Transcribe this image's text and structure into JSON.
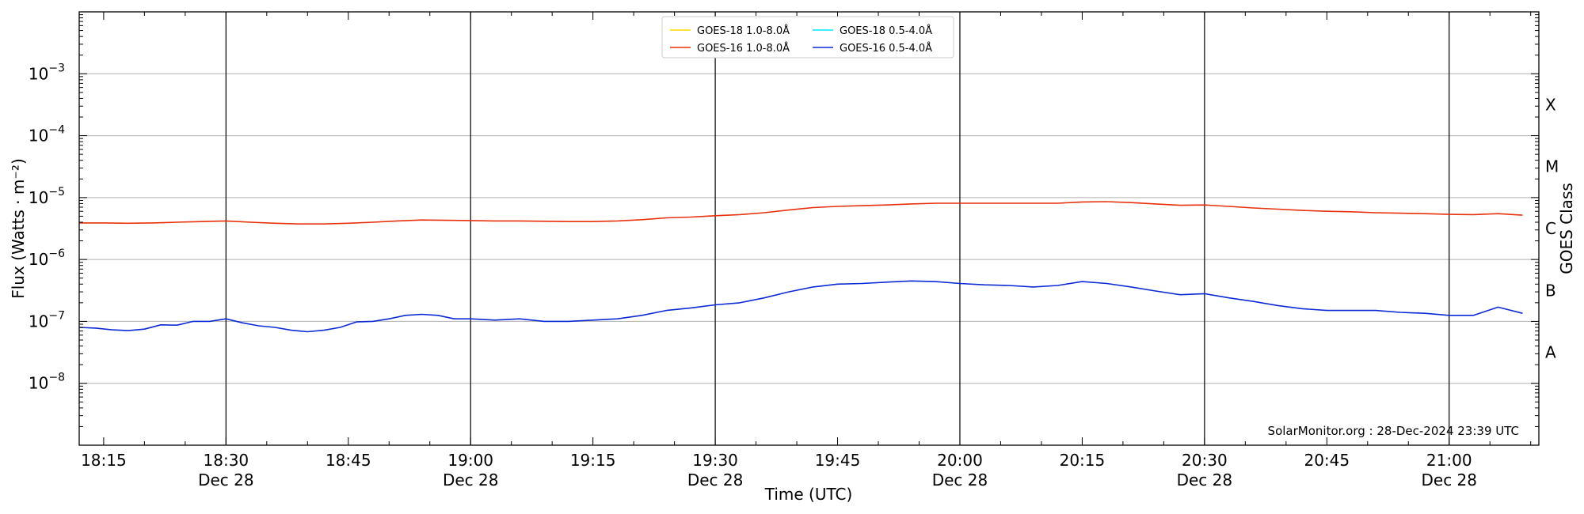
{
  "chart_data": {
    "type": "line",
    "title": "",
    "xlabel": "Time (UTC)",
    "ylabel": "Flux (Watts · m⁻²)",
    "y2label": "GOES Class",
    "y_scale": "log",
    "ylim": [
      1e-09,
      0.01
    ],
    "xlim": [
      "18:12",
      "21:11"
    ],
    "grid": "horizontal at decades",
    "vertical_markers": [
      "18:30",
      "19:00",
      "19:30",
      "20:00",
      "20:30",
      "21:00"
    ],
    "x_ticks": [
      {
        "t": "18:15",
        "line1": "18:15",
        "line2": ""
      },
      {
        "t": "18:30",
        "line1": "18:30",
        "line2": "Dec 28"
      },
      {
        "t": "18:45",
        "line1": "18:45",
        "line2": ""
      },
      {
        "t": "19:00",
        "line1": "19:00",
        "line2": "Dec 28"
      },
      {
        "t": "19:15",
        "line1": "19:15",
        "line2": ""
      },
      {
        "t": "19:30",
        "line1": "19:30",
        "line2": "Dec 28"
      },
      {
        "t": "19:45",
        "line1": "19:45",
        "line2": ""
      },
      {
        "t": "20:00",
        "line1": "20:00",
        "line2": "Dec 28"
      },
      {
        "t": "20:15",
        "line1": "20:15",
        "line2": ""
      },
      {
        "t": "20:30",
        "line1": "20:30",
        "line2": "Dec 28"
      },
      {
        "t": "20:45",
        "line1": "20:45",
        "line2": ""
      },
      {
        "t": "21:00",
        "line1": "21:00",
        "line2": "Dec 28"
      }
    ],
    "y_ticks": [
      {
        "value": 1e-08,
        "base": "10",
        "exp": "−8"
      },
      {
        "value": 1e-07,
        "base": "10",
        "exp": "−7"
      },
      {
        "value": 1e-06,
        "base": "10",
        "exp": "−6"
      },
      {
        "value": 1e-05,
        "base": "10",
        "exp": "−5"
      },
      {
        "value": 0.0001,
        "base": "10",
        "exp": "−4"
      },
      {
        "value": 0.001,
        "base": "10",
        "exp": "−3"
      }
    ],
    "goes_classes": [
      {
        "label": "A",
        "value": 3.16e-08
      },
      {
        "label": "B",
        "value": 3.16e-07
      },
      {
        "label": "C",
        "value": 3.16e-06
      },
      {
        "label": "M",
        "value": 3.16e-05
      },
      {
        "label": "X",
        "value": 0.000316
      }
    ],
    "legend": {
      "position": "top-center",
      "entries": [
        {
          "name": "GOES-18 1.0-8.0Å",
          "color": "#ffd700"
        },
        {
          "name": "GOES-18 0.5-4.0Å",
          "color": "#00e5ff"
        },
        {
          "name": "GOES-16 1.0-8.0Å",
          "color": "#e8300a"
        },
        {
          "name": "GOES-16 0.5-4.0Å",
          "color": "#0a2ad6"
        }
      ]
    },
    "annotation": "SolarMonitor.org : 28-Dec-2024 23:39 UTC",
    "series": [
      {
        "name": "GOES-16 1.0-8.0Å",
        "color": "#e8300a",
        "x": [
          "18:12",
          "18:15",
          "18:18",
          "18:21",
          "18:24",
          "18:27",
          "18:30",
          "18:33",
          "18:36",
          "18:39",
          "18:42",
          "18:45",
          "18:48",
          "18:51",
          "18:54",
          "18:57",
          "19:00",
          "19:03",
          "19:06",
          "19:09",
          "19:12",
          "19:15",
          "19:18",
          "19:21",
          "19:24",
          "19:27",
          "19:30",
          "19:33",
          "19:36",
          "19:39",
          "19:42",
          "19:45",
          "19:48",
          "19:51",
          "19:54",
          "19:57",
          "20:00",
          "20:03",
          "20:06",
          "20:09",
          "20:12",
          "20:15",
          "20:18",
          "20:21",
          "20:24",
          "20:27",
          "20:30",
          "20:33",
          "20:36",
          "20:39",
          "20:42",
          "20:45",
          "20:48",
          "20:51",
          "20:54",
          "20:57",
          "21:00",
          "21:03",
          "21:06",
          "21:09"
        ],
        "values": [
          3.9e-06,
          3.9e-06,
          3.85e-06,
          3.9e-06,
          4e-06,
          4.1e-06,
          4.2e-06,
          4e-06,
          3.85e-06,
          3.75e-06,
          3.75e-06,
          3.85e-06,
          4e-06,
          4.2e-06,
          4.35e-06,
          4.3e-06,
          4.25e-06,
          4.2e-06,
          4.2e-06,
          4.15e-06,
          4.1e-06,
          4.1e-06,
          4.2e-06,
          4.4e-06,
          4.7e-06,
          4.85e-06,
          5.1e-06,
          5.3e-06,
          5.7e-06,
          6.3e-06,
          6.9e-06,
          7.2e-06,
          7.4e-06,
          7.6e-06,
          7.9e-06,
          8.1e-06,
          8.1e-06,
          8.1e-06,
          8.1e-06,
          8.1e-06,
          8.1e-06,
          8.5e-06,
          8.6e-06,
          8.3e-06,
          7.9e-06,
          7.5e-06,
          7.6e-06,
          7.2e-06,
          6.8e-06,
          6.5e-06,
          6.2e-06,
          6e-06,
          5.9e-06,
          5.7e-06,
          5.6e-06,
          5.5e-06,
          5.35e-06,
          5.3e-06,
          5.5e-06,
          5.2e-06
        ]
      },
      {
        "name": "GOES-16 0.5-4.0Å",
        "color": "#0a2ad6",
        "x": [
          "18:12",
          "18:14",
          "18:16",
          "18:18",
          "18:20",
          "18:22",
          "18:24",
          "18:26",
          "18:28",
          "18:30",
          "18:32",
          "18:34",
          "18:36",
          "18:38",
          "18:40",
          "18:42",
          "18:44",
          "18:46",
          "18:48",
          "18:50",
          "18:52",
          "18:54",
          "18:56",
          "18:58",
          "19:00",
          "19:03",
          "19:06",
          "19:09",
          "19:12",
          "19:15",
          "19:18",
          "19:21",
          "19:24",
          "19:27",
          "19:30",
          "19:33",
          "19:36",
          "19:39",
          "19:42",
          "19:45",
          "19:48",
          "19:51",
          "19:54",
          "19:57",
          "20:00",
          "20:03",
          "20:06",
          "20:09",
          "20:12",
          "20:15",
          "20:18",
          "20:21",
          "20:24",
          "20:27",
          "20:30",
          "20:33",
          "20:36",
          "20:39",
          "20:42",
          "20:45",
          "20:48",
          "20:51",
          "20:54",
          "20:57",
          "21:00",
          "21:03",
          "21:06",
          "21:09"
        ],
        "values": [
          8e-08,
          7.8e-08,
          7.3e-08,
          7.1e-08,
          7.5e-08,
          8.8e-08,
          8.7e-08,
          1e-07,
          1e-07,
          1.1e-07,
          9.5e-08,
          8.5e-08,
          8e-08,
          7.2e-08,
          6.8e-08,
          7.2e-08,
          8e-08,
          9.8e-08,
          1e-07,
          1.1e-07,
          1.25e-07,
          1.3e-07,
          1.25e-07,
          1.1e-07,
          1.1e-07,
          1.05e-07,
          1.1e-07,
          1e-07,
          1e-07,
          1.05e-07,
          1.1e-07,
          1.25e-07,
          1.5e-07,
          1.65e-07,
          1.85e-07,
          2e-07,
          2.4e-07,
          3e-07,
          3.6e-07,
          4e-07,
          4.1e-07,
          4.3e-07,
          4.5e-07,
          4.4e-07,
          4.1e-07,
          3.9e-07,
          3.8e-07,
          3.6e-07,
          3.8e-07,
          4.4e-07,
          4.1e-07,
          3.6e-07,
          3.1e-07,
          2.7e-07,
          2.8e-07,
          2.4e-07,
          2.1e-07,
          1.8e-07,
          1.6e-07,
          1.5e-07,
          1.5e-07,
          1.5e-07,
          1.4e-07,
          1.35e-07,
          1.25e-07,
          1.25e-07,
          1.7e-07,
          1.35e-07
        ]
      }
    ]
  }
}
